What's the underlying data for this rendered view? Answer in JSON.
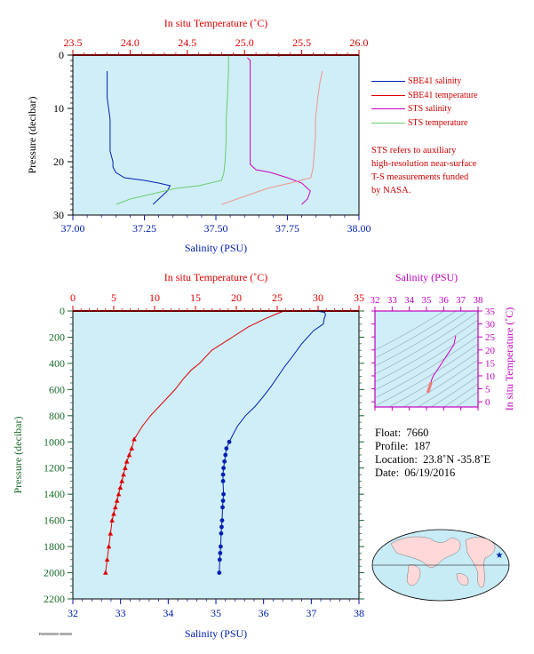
{
  "colors": {
    "salinity": "#0020b0",
    "temperature": "#dd0000",
    "sts_salinity": "#d000c8",
    "sts_temperature": "#6ccc6c",
    "sts_temp_light": "#f0968c",
    "plot_bg": "#cfeef8",
    "ts_axis": "#c000c0",
    "pressure_axis": "#1a6b2a"
  },
  "top_panel": {
    "top_axis_title": "In situ Temperature (˚C)",
    "bottom_axis_title": "Salinity (PSU)",
    "y_axis_title": "Pressure (decibar)",
    "temp_ticks": [
      "23.5",
      "24.0",
      "24.5",
      "25.0",
      "25.5",
      "26.0"
    ],
    "sal_ticks": [
      "37.00",
      "37.25",
      "37.50",
      "37.75",
      "38.00"
    ],
    "p_ticks": [
      "0",
      "10",
      "20",
      "30"
    ]
  },
  "legend": {
    "items": [
      {
        "label": "SBE41 salinity",
        "color": "#0020b0"
      },
      {
        "label": "SBE41 temperature",
        "color": "#dd0000"
      },
      {
        "label": "STS salinity",
        "color": "#d000c8"
      },
      {
        "label": "STS temperature",
        "color": "#6ccc6c"
      }
    ]
  },
  "note": {
    "lines": [
      "STS refers to auxiliary",
      "high-resolution near-surface",
      "T-S measurements funded",
      "by NASA."
    ]
  },
  "main_panel": {
    "top_axis_title": "In situ Temperature (˚C)",
    "bottom_axis_title": "Salinity (PSU)",
    "y_axis_title": "Pressure (decibar)",
    "temp_ticks": [
      "0",
      "5",
      "10",
      "15",
      "20",
      "25",
      "30",
      "35"
    ],
    "sal_ticks": [
      "32",
      "33",
      "34",
      "35",
      "36",
      "37",
      "38"
    ],
    "p_ticks": [
      "0",
      "200",
      "400",
      "600",
      "800",
      "1000",
      "1200",
      "1400",
      "1600",
      "1800",
      "2000",
      "2200"
    ]
  },
  "ts_panel": {
    "top_axis_title": "Salinity (PSU)",
    "right_axis_title": "In situ Temperature (˚C)",
    "sal_ticks": [
      "32",
      "33",
      "34",
      "35",
      "36",
      "37",
      "38"
    ],
    "temp_ticks": [
      "0",
      "5",
      "10",
      "15",
      "20",
      "25",
      "30",
      "35"
    ]
  },
  "info": {
    "float_label": "Float:",
    "float_value": "7660",
    "profile_label": "Profile:",
    "profile_value": "187",
    "location_label": "Location:",
    "location_value": "23.8˚N  -35.8˚E",
    "date_label": "Date:",
    "date_value": "06/19/2016"
  },
  "footer_text": "P0000000000 0000000",
  "chart_data": [
    {
      "type": "line",
      "panel": "top",
      "xlim_salinity": [
        37.0,
        38.0
      ],
      "xlim_temperature": [
        23.5,
        26.0
      ],
      "ylim_pressure": [
        30,
        0
      ],
      "series": [
        {
          "name": "SBE41 salinity",
          "axis": "salinity",
          "x": [
            37.12,
            37.12,
            37.13,
            37.13,
            37.13,
            37.14,
            37.14,
            37.15,
            37.18,
            37.25,
            37.3,
            37.34,
            37.33,
            37.3,
            37.28
          ],
          "y": [
            3,
            8,
            12,
            15,
            18,
            20,
            21,
            22,
            23,
            23.5,
            24,
            24.5,
            25.5,
            27,
            28
          ]
        },
        {
          "name": "SBE41 temperature",
          "axis": "temperature",
          "x": [
            25.3,
            25.3
          ],
          "y": [
            0,
            0.3
          ]
        },
        {
          "name": "STS salinity",
          "axis": "salinity",
          "x": [
            37.61,
            37.62,
            37.62,
            37.62,
            37.62,
            37.62,
            37.62,
            37.62,
            37.64,
            37.69,
            37.75,
            37.8,
            37.83,
            37.82,
            37.8
          ],
          "y": [
            0.5,
            1,
            5,
            10,
            15,
            18,
            19.5,
            20.5,
            21.5,
            22,
            23,
            24,
            25.5,
            27,
            28
          ]
        },
        {
          "name": "STS temperature",
          "axis": "temperature",
          "x": [
            24.86,
            24.86,
            24.85,
            24.84,
            24.84,
            24.83,
            24.82,
            24.8,
            24.6,
            24.4,
            24.2,
            24.0,
            23.88
          ],
          "y": [
            0,
            3,
            8,
            12,
            16,
            20,
            22,
            23.5,
            24.5,
            25,
            26,
            27,
            28
          ]
        },
        {
          "name": "",
          "axis": "temperature",
          "color_key": "sts_temp_light",
          "x": [
            25.68,
            25.66,
            25.64,
            25.62,
            25.62,
            25.61,
            25.6,
            25.58,
            25.4,
            25.2,
            25.0,
            24.8
          ],
          "y": [
            3,
            5,
            8,
            12,
            15,
            18,
            21,
            23,
            24,
            25,
            26.5,
            28
          ]
        }
      ]
    },
    {
      "type": "line",
      "panel": "main",
      "xlim_salinity": [
        32,
        38
      ],
      "xlim_temperature": [
        0,
        35
      ],
      "ylim_pressure": [
        2200,
        0
      ],
      "series": [
        {
          "name": "SBE41 salinity",
          "axis": "salinity",
          "markers_from": 1000,
          "x": [
            37.1,
            37.28,
            37.3,
            37.27,
            37.25,
            37.05,
            36.8,
            36.6,
            36.45,
            36.3,
            36.15,
            35.98,
            35.82,
            35.62,
            35.45,
            35.35,
            35.28,
            35.22,
            35.2,
            35.18,
            35.16,
            35.15,
            35.15,
            35.16,
            35.15,
            35.14,
            35.13,
            35.12,
            35.11,
            35.1,
            35.09,
            35.08,
            35.07
          ],
          "y": [
            0,
            10,
            30,
            60,
            100,
            150,
            250,
            350,
            420,
            500,
            580,
            660,
            730,
            800,
            880,
            950,
            1000,
            1050,
            1100,
            1150,
            1200,
            1250,
            1300,
            1400,
            1450,
            1500,
            1600,
            1650,
            1700,
            1800,
            1850,
            1900,
            2000
          ]
        },
        {
          "name": "SBE41 temperature",
          "axis": "temperature",
          "markers_from": 980,
          "x": [
            25.8,
            25.0,
            23.5,
            21.5,
            19.5,
            17.0,
            15.5,
            14.5,
            13.5,
            12.5,
            11.0,
            9.5,
            8.5,
            8.0,
            7.5,
            7.2,
            6.9,
            6.6,
            6.4,
            6.2,
            6.0,
            5.8,
            5.6,
            5.4,
            5.2,
            5.0,
            4.8,
            4.6,
            4.4,
            4.2,
            4.0
          ],
          "y": [
            0,
            20,
            60,
            120,
            200,
            300,
            400,
            450,
            520,
            600,
            700,
            800,
            880,
            930,
            980,
            1050,
            1100,
            1150,
            1200,
            1250,
            1300,
            1350,
            1400,
            1450,
            1500,
            1550,
            1600,
            1700,
            1800,
            1900,
            2000
          ]
        }
      ]
    },
    {
      "type": "scatter",
      "panel": "ts",
      "xlim_salinity": [
        32,
        38
      ],
      "ylim_temperature": [
        -2,
        35
      ],
      "series": [
        {
          "name": "",
          "x": [
            36.7,
            36.6,
            36.3,
            36.0,
            35.8,
            35.6,
            35.4,
            35.3,
            35.25,
            35.2,
            35.15,
            35.1
          ],
          "y": [
            25.5,
            22,
            19,
            16,
            14,
            12,
            10,
            8.5,
            7,
            6,
            5,
            4
          ]
        }
      ]
    }
  ]
}
